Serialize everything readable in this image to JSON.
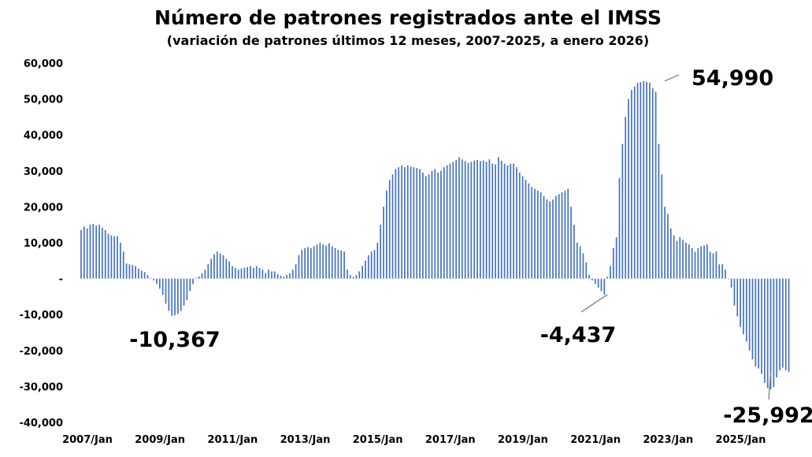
{
  "chart_data": {
    "type": "bar",
    "title": "Número de patrones registrados ante el IMSS",
    "subtitle": "(variación de patrones últimos 12 meses, 2007-2025, a enero 2026)",
    "xlabel": "",
    "ylabel": "",
    "ylim": [
      -40000,
      60000
    ],
    "yticks": [
      {
        "value": 60000,
        "label": "60,000"
      },
      {
        "value": 50000,
        "label": "50,000"
      },
      {
        "value": 40000,
        "label": "40,000"
      },
      {
        "value": 30000,
        "label": "30,000"
      },
      {
        "value": 20000,
        "label": "20,000"
      },
      {
        "value": 10000,
        "label": "10,000"
      },
      {
        "value": 0,
        "label": "-"
      },
      {
        "value": -10000,
        "label": "-10,000"
      },
      {
        "value": -20000,
        "label": "-20,000"
      },
      {
        "value": -30000,
        "label": "-30,000"
      },
      {
        "value": -40000,
        "label": "-40,000"
      }
    ],
    "xticks": [
      {
        "index": 0,
        "label": "2007/Jan"
      },
      {
        "index": 24,
        "label": "2009/Jan"
      },
      {
        "index": 48,
        "label": "2011/Jan"
      },
      {
        "index": 72,
        "label": "2013/Jan"
      },
      {
        "index": 96,
        "label": "2015/Jan"
      },
      {
        "index": 120,
        "label": "2017/Jan"
      },
      {
        "index": 144,
        "label": "2019/Jan"
      },
      {
        "index": 168,
        "label": "2021/Jan"
      },
      {
        "index": 192,
        "label": "2023/Jan"
      },
      {
        "index": 216,
        "label": "2025/Jan"
      }
    ],
    "start_month": "2007/Jan",
    "grid": false,
    "bar_color": "#4472C4",
    "values": [
      13500,
      14500,
      14000,
      15000,
      15200,
      14700,
      15000,
      14200,
      13500,
      12500,
      12000,
      11800,
      11800,
      10000,
      7500,
      4200,
      4000,
      3800,
      3500,
      2800,
      2200,
      1800,
      1000,
      200,
      -500,
      -1500,
      -2800,
      -4500,
      -7000,
      -9000,
      -10367,
      -10200,
      -9800,
      -9000,
      -7500,
      -6000,
      -3500,
      -1500,
      200,
      600,
      1500,
      2500,
      4000,
      5500,
      6800,
      7500,
      7000,
      6500,
      5500,
      4800,
      3500,
      3000,
      2500,
      2800,
      3000,
      3200,
      3500,
      3000,
      3500,
      3000,
      2500,
      1500,
      2500,
      2000,
      2000,
      1200,
      800,
      500,
      1000,
      1500,
      2500,
      4000,
      6500,
      8000,
      8500,
      8800,
      8500,
      9000,
      9500,
      10000,
      9500,
      9200,
      9800,
      9000,
      8500,
      8000,
      7800,
      7500,
      2500,
      1000,
      500,
      1000,
      2000,
      3500,
      5000,
      6500,
      7500,
      8000,
      10000,
      15000,
      20000,
      24500,
      27500,
      29000,
      30500,
      31000,
      31500,
      31000,
      31500,
      31200,
      31000,
      30800,
      30500,
      29500,
      28500,
      29000,
      30000,
      30500,
      29500,
      30000,
      31000,
      31500,
      32000,
      32500,
      33000,
      33800,
      33200,
      32700,
      32200,
      32500,
      32800,
      33000,
      32700,
      32900,
      32500,
      33200,
      32000,
      31800,
      33800,
      32800,
      32000,
      31500,
      31900,
      32000,
      31000,
      29500,
      28500,
      27500,
      26500,
      25500,
      25000,
      24500,
      24000,
      23000,
      22000,
      21500,
      22000,
      23000,
      23500,
      24000,
      24500,
      25000,
      20000,
      15000,
      10000,
      9000,
      7000,
      4500,
      1000,
      -500,
      -1500,
      -2500,
      -3500,
      -4437,
      500,
      3500,
      8500,
      11500,
      28000,
      37500,
      45000,
      50000,
      52500,
      53500,
      54500,
      54700,
      54990,
      54800,
      54500,
      53000,
      52000,
      37500,
      29000,
      20000,
      18000,
      14000,
      12000,
      10500,
      11500,
      10800,
      10000,
      9500,
      8500,
      7500,
      8500,
      9000,
      9200,
      9500,
      7500,
      7000,
      7500,
      4000,
      4000,
      2500,
      0,
      -2500,
      -7500,
      -10500,
      -13500,
      -15500,
      -17500,
      -20000,
      -22500,
      -24500,
      -25000,
      -26500,
      -29000,
      -30500,
      -30800,
      -30200,
      -27500,
      -25500,
      -24800,
      -25500,
      -25992
    ],
    "annotations": [
      {
        "label": "54,990",
        "index": 193,
        "value": 54990
      },
      {
        "label": "-10,367",
        "index": 30,
        "value": -10367
      },
      {
        "label": "-4,437",
        "index": 174,
        "value": -4437
      },
      {
        "label": "-25,992",
        "index": 228,
        "value": -25992
      }
    ]
  }
}
